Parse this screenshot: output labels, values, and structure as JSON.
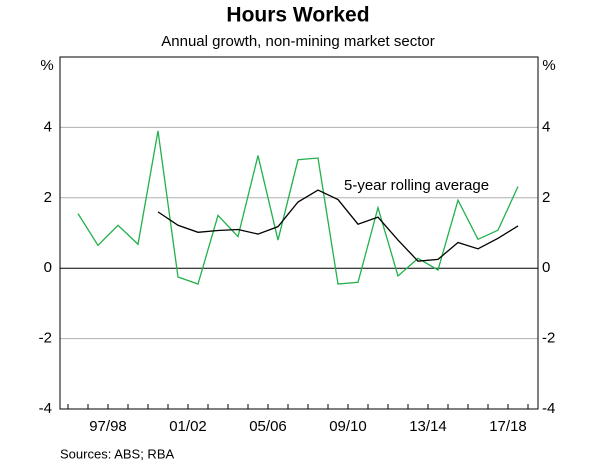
{
  "chart_data": {
    "type": "line",
    "title": "Hours Worked",
    "subtitle": "Annual growth, non-mining market sector",
    "y_label": "%",
    "y2_label": "%",
    "source": "Sources:  ABS; RBA",
    "categories": [
      null,
      "97/98",
      null,
      null,
      null,
      "01/02",
      null,
      null,
      null,
      "05/06",
      null,
      null,
      null,
      "09/10",
      null,
      null,
      null,
      "13/14",
      null,
      null,
      null,
      "17/18",
      null
    ],
    "series": [
      {
        "color": "#22b14c",
        "values": [
          1.55,
          0.65,
          1.22,
          0.68,
          3.9,
          -0.25,
          -0.45,
          1.5,
          0.9,
          3.2,
          0.8,
          3.08,
          3.13,
          -0.45,
          -0.4,
          1.72,
          -0.22,
          0.28,
          -0.05,
          1.93,
          0.82,
          1.08,
          2.32
        ]
      },
      {
        "name": "5-year rolling average",
        "color": "#000000",
        "values": [
          null,
          null,
          null,
          null,
          1.6,
          1.22,
          1.02,
          1.07,
          1.1,
          0.97,
          1.18,
          1.88,
          2.22,
          1.95,
          1.25,
          1.45,
          0.8,
          0.2,
          0.25,
          0.73,
          0.55,
          0.85,
          1.2
        ]
      }
    ],
    "ylim": [
      -4,
      6
    ],
    "yticks": [
      -4,
      -2,
      0,
      2,
      4
    ],
    "grid": true
  }
}
